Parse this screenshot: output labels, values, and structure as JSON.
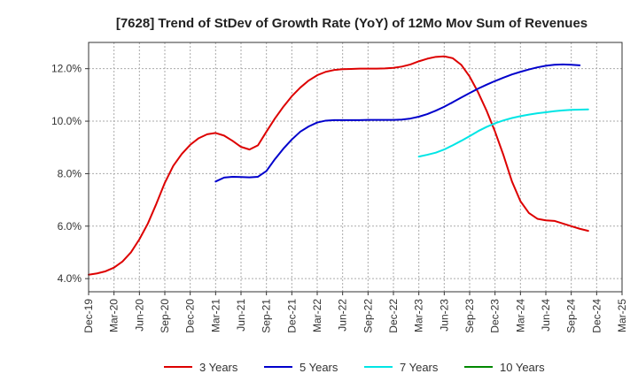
{
  "chart_data": {
    "type": "line",
    "title": "[7628]  Trend of StDev of Growth Rate (YoY) of 12Mo Mov Sum of Revenues",
    "xlabel": "",
    "ylabel": "",
    "x_ticks": [
      "Dec-19",
      "Mar-20",
      "Jun-20",
      "Sep-20",
      "Dec-20",
      "Mar-21",
      "Jun-21",
      "Sep-21",
      "Dec-21",
      "Mar-22",
      "Jun-22",
      "Sep-22",
      "Dec-22",
      "Mar-23",
      "Jun-23",
      "Sep-23",
      "Dec-23",
      "Mar-24",
      "Jun-24",
      "Sep-24",
      "Dec-24",
      "Mar-25"
    ],
    "y_ticks": [
      "4.0%",
      "6.0%",
      "8.0%",
      "10.0%",
      "12.0%"
    ],
    "y_tick_values": [
      4,
      6,
      8,
      10,
      12
    ],
    "ylim": [
      3.5,
      13.0
    ],
    "grid": true,
    "legend_position": "bottom",
    "series": [
      {
        "name": "3 Years",
        "color": "#dd0000",
        "start_index": 0,
        "values": [
          4.15,
          4.2,
          4.28,
          4.42,
          4.65,
          5.0,
          5.5,
          6.1,
          6.85,
          7.65,
          8.3,
          8.75,
          9.1,
          9.35,
          9.5,
          9.55,
          9.45,
          9.25,
          9.02,
          8.92,
          9.08,
          9.6,
          10.1,
          10.55,
          10.95,
          11.28,
          11.55,
          11.75,
          11.88,
          11.95,
          11.98,
          11.99,
          12.0,
          12.0,
          12.0,
          12.01,
          12.03,
          12.08,
          12.16,
          12.28,
          12.38,
          12.45,
          12.47,
          12.4,
          12.15,
          11.7,
          11.1,
          10.4,
          9.6,
          8.7,
          7.7,
          6.95,
          6.5,
          6.28,
          6.22,
          6.2,
          6.1,
          6.0,
          5.9,
          5.82
        ]
      },
      {
        "name": "5 Years",
        "color": "#0000cc",
        "start_index": 15,
        "values": [
          7.7,
          7.85,
          7.88,
          7.87,
          7.86,
          7.88,
          8.1,
          8.55,
          8.95,
          9.3,
          9.6,
          9.8,
          9.95,
          10.02,
          10.04,
          10.04,
          10.04,
          10.04,
          10.05,
          10.05,
          10.05,
          10.05,
          10.06,
          10.1,
          10.17,
          10.27,
          10.4,
          10.55,
          10.72,
          10.9,
          11.07,
          11.24,
          11.39,
          11.53,
          11.66,
          11.78,
          11.88,
          11.97,
          12.05,
          12.11,
          12.15,
          12.16,
          12.15,
          12.13
        ]
      },
      {
        "name": "7 Years",
        "color": "#00e5e5",
        "start_index": 39,
        "values": [
          8.65,
          8.72,
          8.8,
          8.92,
          9.08,
          9.25,
          9.43,
          9.62,
          9.78,
          9.92,
          10.03,
          10.12,
          10.19,
          10.25,
          10.3,
          10.34,
          10.38,
          10.41,
          10.43,
          10.44,
          10.45
        ]
      },
      {
        "name": "10 Years",
        "color": "#008800",
        "start_index": 0,
        "values": []
      }
    ]
  }
}
